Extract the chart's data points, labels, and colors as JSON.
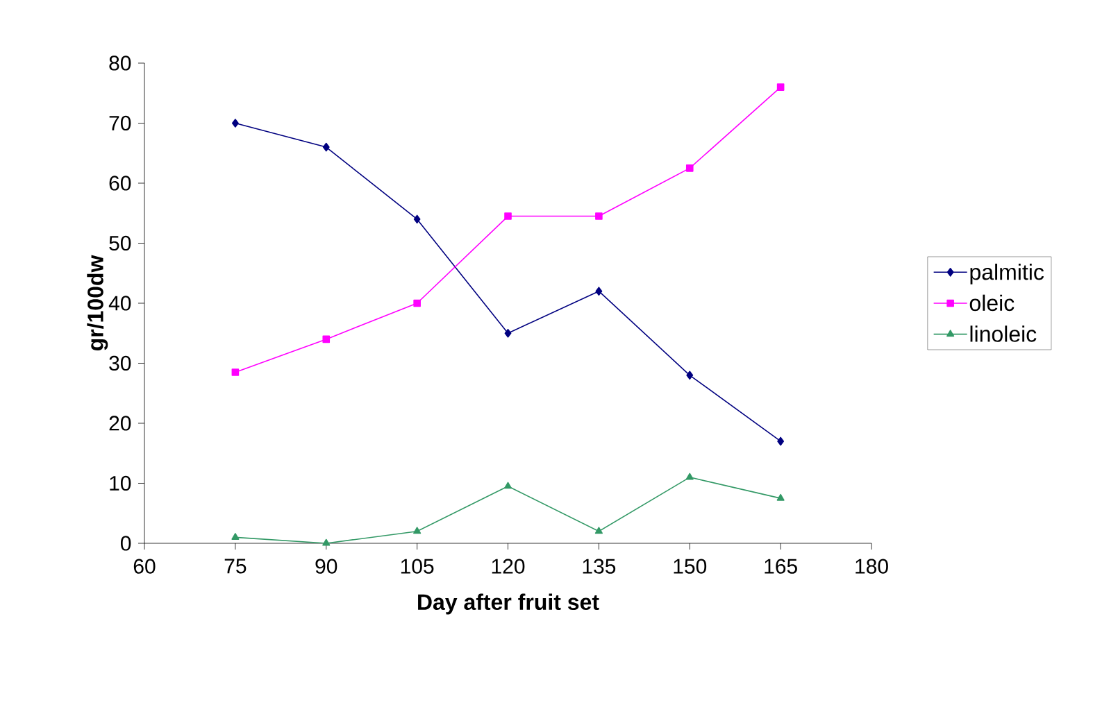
{
  "chart_data": {
    "type": "line",
    "xlabel": "Day after fruit set",
    "ylabel": "gr/100dw",
    "x": [
      75,
      90,
      105,
      120,
      135,
      150,
      165
    ],
    "xlim": [
      60,
      180
    ],
    "xticks": [
      60,
      75,
      90,
      105,
      120,
      135,
      150,
      165,
      180
    ],
    "ylim": [
      0,
      80
    ],
    "yticks": [
      0,
      10,
      20,
      30,
      40,
      50,
      60,
      70,
      80
    ],
    "grid": false,
    "legend": "right",
    "line_style": "solid",
    "series": [
      {
        "name": "palmitic",
        "color": "#000080",
        "marker": "diamond",
        "values": [
          70,
          66,
          54,
          35,
          42,
          28,
          17
        ]
      },
      {
        "name": "oleic",
        "color": "#ff00ff",
        "marker": "square",
        "values": [
          28.5,
          34,
          40,
          54.5,
          54.5,
          62.5,
          76
        ]
      },
      {
        "name": "linoleic",
        "color": "#339966",
        "marker": "triangle",
        "values": [
          1,
          0,
          2,
          9.5,
          2,
          11,
          7.5
        ]
      }
    ]
  }
}
